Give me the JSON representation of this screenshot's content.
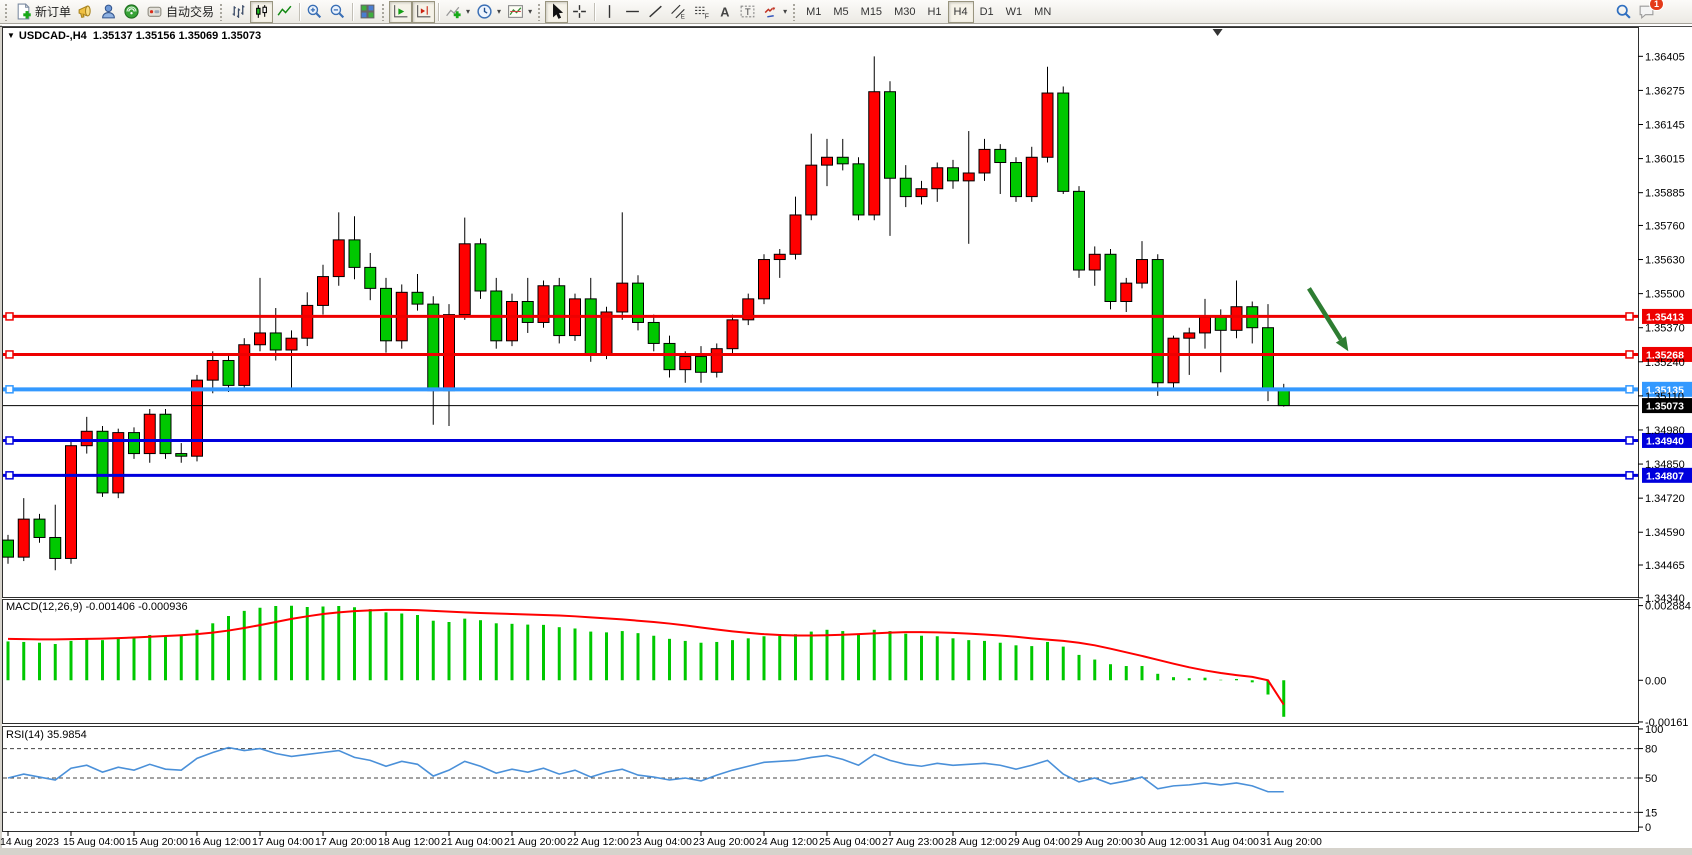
{
  "toolbar": {
    "new_order_label": "新订单",
    "autotrading_label": "自动交易",
    "timeframes": [
      "M1",
      "M5",
      "M15",
      "M30",
      "H1",
      "H4",
      "D1",
      "W1",
      "MN"
    ],
    "active_timeframe": "H4",
    "notification_count": "1"
  },
  "chart": {
    "symbol": "USDCAD-",
    "timeframe": "H4",
    "title": "USDCAD-,H4",
    "ohlc": "1.35137 1.35156 1.35069 1.35073",
    "collapse_icon": "▼"
  },
  "indicators": {
    "macd": {
      "name": "MACD(12,26,9)",
      "value_main": "-0.001406",
      "value_signal": "-0.000936"
    },
    "rsi": {
      "name": "RSI(14)",
      "value": "35.9854"
    }
  },
  "chart_data": {
    "type": "candlestick",
    "symbol": "USDCAD-",
    "period": "H4",
    "current": {
      "open": 1.35137,
      "high": 1.35156,
      "low": 1.35069,
      "close": 1.35073
    },
    "colors": {
      "bull": "#ff0000",
      "bear": "#00c800",
      "wick": "#000000",
      "macd_hist": "#00c800",
      "macd_signal": "#ff0000",
      "rsi_line": "#4a90d9",
      "arrow": "#2e7d32",
      "current_price": "#000000"
    },
    "main_ylim": [
      1.34343,
      1.36513
    ],
    "price_ticks": [
      1.36405,
      1.36275,
      1.36145,
      1.36015,
      1.35885,
      1.3576,
      1.3563,
      1.355,
      1.3537,
      1.3524,
      1.3511,
      1.3498,
      1.3485,
      1.3472,
      1.3459,
      1.34465,
      1.3434
    ],
    "hlines": [
      {
        "price": 1.35413,
        "label": "1.35413",
        "color": "#ee0000",
        "width": 3
      },
      {
        "price": 1.35268,
        "label": "1.35268",
        "color": "#ee0000",
        "width": 3
      },
      {
        "price": 1.35135,
        "label": "1.35135",
        "color": "#3399ff",
        "width": 4
      },
      {
        "price": 1.3494,
        "label": "1.34940",
        "color": "#0000dd",
        "width": 3
      },
      {
        "price": 1.34807,
        "label": "1.34807",
        "color": "#0000dd",
        "width": 3
      }
    ],
    "current_price": {
      "value": 1.35073,
      "label": "1.35073"
    },
    "time_tick_step": 4,
    "time_labels": [
      "14 Aug 2023",
      "15 Aug 04:00",
      "15 Aug 20:00",
      "16 Aug 12:00",
      "17 Aug 04:00",
      "17 Aug 20:00",
      "18 Aug 12:00",
      "21 Aug 04:00",
      "21 Aug 20:00",
      "22 Aug 12:00",
      "23 Aug 04:00",
      "23 Aug 20:00",
      "24 Aug 12:00",
      "25 Aug 04:00",
      "27 Aug 23:00",
      "28 Aug 12:00",
      "29 Aug 04:00",
      "29 Aug 20:00",
      "30 Aug 12:00",
      "31 Aug 04:00",
      "31 Aug 20:00"
    ],
    "candles": [
      [
        1.3456,
        1.3458,
        1.3447,
        1.34495
      ],
      [
        1.34495,
        1.3472,
        1.3448,
        1.3464
      ],
      [
        1.3464,
        1.3466,
        1.3455,
        1.3457
      ],
      [
        1.3457,
        1.34695,
        1.34445,
        1.3449
      ],
      [
        1.3449,
        1.3494,
        1.3447,
        1.3492
      ],
      [
        1.3492,
        1.3503,
        1.3489,
        1.34975
      ],
      [
        1.34975,
        1.34995,
        1.34725,
        1.3474
      ],
      [
        1.3474,
        1.34985,
        1.3472,
        1.3497
      ],
      [
        1.3497,
        1.3499,
        1.3487,
        1.3489
      ],
      [
        1.3489,
        1.3506,
        1.34855,
        1.3504
      ],
      [
        1.3504,
        1.3506,
        1.3487,
        1.3489
      ],
      [
        1.3489,
        1.3493,
        1.34855,
        1.3488
      ],
      [
        1.3488,
        1.3519,
        1.3486,
        1.3517
      ],
      [
        1.3517,
        1.3528,
        1.3512,
        1.35245
      ],
      [
        1.35245,
        1.3527,
        1.35125,
        1.3515
      ],
      [
        1.3515,
        1.3533,
        1.35135,
        1.35305
      ],
      [
        1.35305,
        1.3556,
        1.3528,
        1.3535
      ],
      [
        1.3535,
        1.35445,
        1.35245,
        1.35285
      ],
      [
        1.35285,
        1.3536,
        1.3513,
        1.3533
      ],
      [
        1.3533,
        1.35505,
        1.353,
        1.35455
      ],
      [
        1.35455,
        1.3561,
        1.3542,
        1.35565
      ],
      [
        1.35565,
        1.3581,
        1.3553,
        1.35705
      ],
      [
        1.35705,
        1.35795,
        1.35555,
        1.356
      ],
      [
        1.356,
        1.35655,
        1.35475,
        1.3552
      ],
      [
        1.3552,
        1.3556,
        1.35275,
        1.3532
      ],
      [
        1.3532,
        1.35535,
        1.3529,
        1.35505
      ],
      [
        1.35505,
        1.35575,
        1.35435,
        1.3546
      ],
      [
        1.3546,
        1.3549,
        1.35,
        1.3513
      ],
      [
        1.3513,
        1.3546,
        1.34995,
        1.3542
      ],
      [
        1.3542,
        1.3579,
        1.354,
        1.3569
      ],
      [
        1.3569,
        1.3571,
        1.3548,
        1.3551
      ],
      [
        1.3551,
        1.3556,
        1.3529,
        1.3532
      ],
      [
        1.3532,
        1.355,
        1.353,
        1.3547
      ],
      [
        1.3547,
        1.3556,
        1.3535,
        1.3539
      ],
      [
        1.3539,
        1.3555,
        1.3537,
        1.3553
      ],
      [
        1.3553,
        1.3556,
        1.3531,
        1.3534
      ],
      [
        1.3534,
        1.355,
        1.3532,
        1.3548
      ],
      [
        1.3548,
        1.3556,
        1.3524,
        1.3527
      ],
      [
        1.3527,
        1.3545,
        1.3525,
        1.3543
      ],
      [
        1.3543,
        1.3581,
        1.354,
        1.3554
      ],
      [
        1.3554,
        1.3557,
        1.3536,
        1.3539
      ],
      [
        1.3539,
        1.3542,
        1.3528,
        1.3531
      ],
      [
        1.3531,
        1.3534,
        1.3518,
        1.3521
      ],
      [
        1.3521,
        1.3528,
        1.3516,
        1.3526
      ],
      [
        1.3526,
        1.353,
        1.3516,
        1.352
      ],
      [
        1.352,
        1.3531,
        1.3518,
        1.3529
      ],
      [
        1.3529,
        1.3542,
        1.3527,
        1.354
      ],
      [
        1.354,
        1.355,
        1.3538,
        1.3548
      ],
      [
        1.3548,
        1.3565,
        1.3546,
        1.3563
      ],
      [
        1.3563,
        1.3567,
        1.3556,
        1.3565
      ],
      [
        1.3565,
        1.3587,
        1.3563,
        1.358
      ],
      [
        1.358,
        1.3611,
        1.3578,
        1.3599
      ],
      [
        1.3599,
        1.3609,
        1.3591,
        1.3602
      ],
      [
        1.3602,
        1.3609,
        1.3597,
        1.35995
      ],
      [
        1.35995,
        1.3602,
        1.3578,
        1.358
      ],
      [
        1.358,
        1.36405,
        1.3578,
        1.3627
      ],
      [
        1.3627,
        1.3631,
        1.3572,
        1.3594
      ],
      [
        1.3594,
        1.3599,
        1.3583,
        1.3587
      ],
      [
        1.3587,
        1.3593,
        1.3584,
        1.359
      ],
      [
        1.359,
        1.36,
        1.3585,
        1.3598
      ],
      [
        1.3598,
        1.3601,
        1.359,
        1.3593
      ],
      [
        1.3593,
        1.3612,
        1.3569,
        1.3596
      ],
      [
        1.3596,
        1.3609,
        1.3593,
        1.3605
      ],
      [
        1.3605,
        1.3607,
        1.3588,
        1.36
      ],
      [
        1.36,
        1.3602,
        1.3585,
        1.3587
      ],
      [
        1.3587,
        1.3606,
        1.3585,
        1.3602
      ],
      [
        1.3602,
        1.36365,
        1.36,
        1.36265
      ],
      [
        1.36265,
        1.3629,
        1.3588,
        1.3589
      ],
      [
        1.3589,
        1.3591,
        1.3556,
        1.3559
      ],
      [
        1.3559,
        1.3568,
        1.3553,
        1.3565
      ],
      [
        1.3565,
        1.3567,
        1.3544,
        1.3547
      ],
      [
        1.3547,
        1.3556,
        1.3543,
        1.3554
      ],
      [
        1.3554,
        1.357,
        1.3552,
        1.3563
      ],
      [
        1.3563,
        1.3565,
        1.3511,
        1.3516
      ],
      [
        1.3516,
        1.3534,
        1.3514,
        1.3533
      ],
      [
        1.3533,
        1.3537,
        1.3519,
        1.3535
      ],
      [
        1.3535,
        1.3548,
        1.3529,
        1.3541
      ],
      [
        1.3541,
        1.3544,
        1.352,
        1.3536
      ],
      [
        1.3536,
        1.3555,
        1.3533,
        1.3545
      ],
      [
        1.3545,
        1.3547,
        1.3531,
        1.3537
      ],
      [
        1.3537,
        1.3546,
        1.3509,
        1.3514
      ],
      [
        1.35137,
        1.35156,
        1.35069,
        1.35073
      ]
    ],
    "macd": {
      "ylim": [
        -0.00165,
        0.0031
      ],
      "ticks": [
        {
          "value": 0.002884,
          "label": "0.002884"
        },
        {
          "value": 0,
          "label": "0.00"
        },
        {
          "value": -0.00161,
          "label": "-0.00161"
        }
      ],
      "values": [
        0.0015,
        0.00148,
        0.00145,
        0.0014,
        0.00152,
        0.0016,
        0.00155,
        0.00162,
        0.00168,
        0.00175,
        0.0017,
        0.00172,
        0.00195,
        0.0022,
        0.00248,
        0.00268,
        0.0028,
        0.00287,
        0.00288,
        0.00283,
        0.00285,
        0.00287,
        0.00282,
        0.00275,
        0.00262,
        0.00258,
        0.00252,
        0.0023,
        0.00225,
        0.00238,
        0.00232,
        0.0022,
        0.00218,
        0.00215,
        0.00214,
        0.00205,
        0.002,
        0.00188,
        0.00185,
        0.0019,
        0.00182,
        0.00172,
        0.0016,
        0.00152,
        0.00145,
        0.00148,
        0.00155,
        0.00162,
        0.0017,
        0.00172,
        0.00178,
        0.00188,
        0.00195,
        0.0019,
        0.00178,
        0.00195,
        0.0019,
        0.0018,
        0.00172,
        0.0017,
        0.00162,
        0.00155,
        0.00152,
        0.00145,
        0.00135,
        0.00132,
        0.00148,
        0.0013,
        0.00098,
        0.0008,
        0.00062,
        0.00055,
        0.00055,
        0.00025,
        0.00012,
        8e-05,
        0.0001,
        2e-05,
        5e-05,
        -8e-05,
        -0.00055,
        -0.00141
      ],
      "signal": [
        0.0016,
        0.00159,
        0.00158,
        0.00158,
        0.00159,
        0.0016,
        0.00161,
        0.00163,
        0.00165,
        0.00168,
        0.00171,
        0.00174,
        0.00178,
        0.00184,
        0.00192,
        0.00202,
        0.00213,
        0.00225,
        0.00237,
        0.00247,
        0.00256,
        0.00262,
        0.00267,
        0.0027,
        0.00272,
        0.00272,
        0.00271,
        0.00268,
        0.00265,
        0.00262,
        0.0026,
        0.00258,
        0.00256,
        0.00254,
        0.00252,
        0.0025,
        0.00247,
        0.00243,
        0.00239,
        0.00235,
        0.0023,
        0.00225,
        0.00219,
        0.00212,
        0.00204,
        0.00196,
        0.00189,
        0.00183,
        0.00178,
        0.00175,
        0.00173,
        0.00173,
        0.00174,
        0.00176,
        0.00178,
        0.00181,
        0.00184,
        0.00186,
        0.00186,
        0.00185,
        0.00183,
        0.0018,
        0.00177,
        0.00173,
        0.00168,
        0.00162,
        0.00157,
        0.00152,
        0.00145,
        0.00135,
        0.00122,
        0.00108,
        0.00094,
        0.00079,
        0.00064,
        0.0005,
        0.00038,
        0.00028,
        0.0002,
        0.00013,
        0.0,
        -0.00094
      ]
    },
    "rsi": {
      "ylim": [
        -4,
        102
      ],
      "ticks": [
        {
          "value": 100,
          "label": "100"
        },
        {
          "value": 80,
          "label": "80"
        },
        {
          "value": 50,
          "label": "50"
        },
        {
          "value": 15,
          "label": "15"
        },
        {
          "value": 0,
          "label": "0"
        }
      ],
      "levels": [
        80,
        50,
        15
      ],
      "values": [
        50,
        54,
        51,
        48,
        60,
        63,
        56,
        61,
        58,
        64,
        59,
        58,
        70,
        76,
        81,
        78,
        80,
        75,
        72,
        74,
        76,
        78,
        71,
        68,
        62,
        67,
        64,
        52,
        58,
        67,
        62,
        55,
        59,
        56,
        60,
        54,
        58,
        51,
        56,
        59,
        53,
        51,
        48,
        50,
        47,
        53,
        58,
        62,
        66,
        67,
        68,
        71,
        73,
        69,
        63,
        74,
        68,
        64,
        62,
        65,
        63,
        64,
        65,
        63,
        59,
        63,
        68,
        54,
        46,
        50,
        44,
        47,
        51,
        39,
        42,
        43,
        45,
        43,
        45,
        42,
        36,
        36
      ]
    },
    "arrow": {
      "from_bar": 82.6,
      "from_price": 1.3552,
      "to_bar": 85.1,
      "to_price": 1.3528
    },
    "shift_marker_bar": 76.8
  }
}
